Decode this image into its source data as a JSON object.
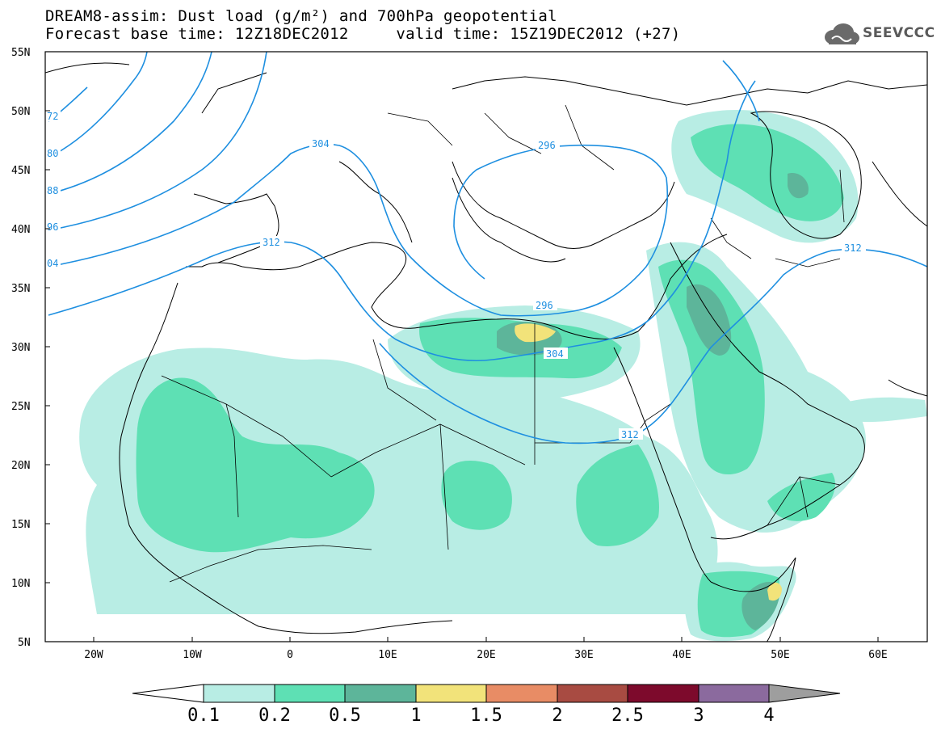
{
  "header": {
    "title_line1": "DREAM8-assim: Dust load (g/m²) and 700hPa geopotential",
    "title_line2": "Forecast base time: 12Z18DEC2012     valid time: 15Z19DEC2012 (+27)"
  },
  "logo": {
    "text": "SEEVCCC",
    "icon": "cloud-logo-icon"
  },
  "map": {
    "lat_labels": [
      "55N",
      "50N",
      "45N",
      "40N",
      "35N",
      "30N",
      "25N",
      "20N",
      "15N",
      "10N",
      "5N"
    ],
    "lon_labels": [
      "20W",
      "10W",
      "0",
      "10E",
      "20E",
      "30E",
      "40E",
      "50E",
      "60E"
    ],
    "contour_labels": [
      "304",
      "296",
      "312",
      "296",
      "304",
      "312",
      "312",
      "72",
      "80",
      "88",
      "96",
      "04"
    ],
    "land_outline_color": "#000000",
    "contour_color": "#1e8fe0"
  },
  "colorbar": {
    "levels": [
      "0.1",
      "0.2",
      "0.5",
      "1",
      "1.5",
      "2",
      "2.5",
      "3",
      "4"
    ],
    "colors": [
      "#b8ede4",
      "#5ee0b4",
      "#5db59a",
      "#f2e37a",
      "#e88c65",
      "#a84b42",
      "#7d0a2c",
      "#8b6a9e",
      "#9e9e9e"
    ]
  }
}
